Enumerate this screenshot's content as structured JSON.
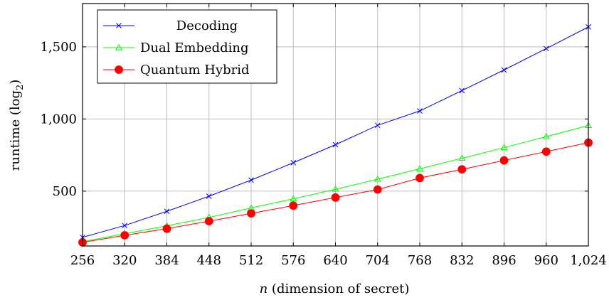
{
  "chart_data": {
    "type": "line",
    "title": "",
    "xlabel_var": "n",
    "xlabel_rest": " (dimension of secret)",
    "ylabel_main": "runtime (log",
    "ylabel_sub": "2",
    "ylabel_close": ")",
    "x": [
      256,
      320,
      384,
      448,
      512,
      576,
      640,
      704,
      768,
      832,
      896,
      960,
      1024
    ],
    "x_tick_labels": [
      "256",
      "320",
      "384",
      "448",
      "512",
      "576",
      "640",
      "704",
      "768",
      "832",
      "896",
      "960",
      "1,024"
    ],
    "y_ticks": [
      500,
      1000,
      1500
    ],
    "y_tick_labels": [
      "500",
      "1,000",
      "1,500"
    ],
    "xlim": [
      256,
      1024
    ],
    "ylim": [
      120,
      1800
    ],
    "grid": true,
    "legend_position": "top-left",
    "series": [
      {
        "name": "Decoding",
        "color": "#0000ff",
        "marker": "x",
        "values": [
          180,
          262,
          360,
          465,
          577,
          697,
          822,
          956,
          1056,
          1197,
          1340,
          1488,
          1638
        ]
      },
      {
        "name": "Dual Embedding",
        "color": "#00ff00",
        "marker": "triangle",
        "values": [
          150,
          205,
          260,
          318,
          384,
          447,
          513,
          583,
          655,
          728,
          802,
          878,
          955
        ]
      },
      {
        "name": "Quantum Hybrid",
        "color": "#ff0000",
        "marker": "circle",
        "values": [
          145,
          194,
          240,
          292,
          346,
          400,
          456,
          511,
          591,
          651,
          713,
          774,
          836
        ]
      }
    ]
  }
}
